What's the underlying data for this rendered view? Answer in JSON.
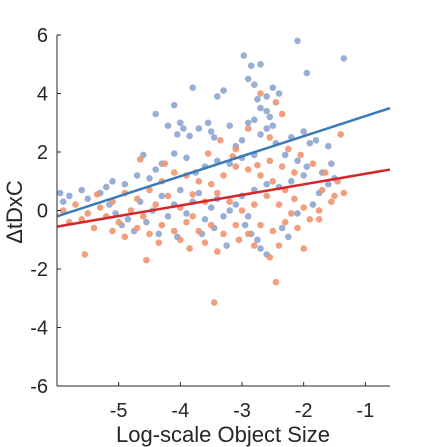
{
  "chart_data": {
    "type": "scatter",
    "title": "",
    "xlabel": "Log-scale Object Size",
    "ylabel": "ΔtDxC",
    "xlim": [
      -6.0,
      -0.6
    ],
    "ylim": [
      -6,
      6
    ],
    "xticks": [
      -5,
      -4,
      -3,
      -2,
      -1
    ],
    "xtick_labels": [
      "-5",
      "-4",
      "-3",
      "-2",
      "-1"
    ],
    "yticks": [
      -6,
      -4,
      -2,
      0,
      2,
      4,
      6
    ],
    "ytick_labels": [
      "-6",
      "-4",
      "-2",
      "0",
      "2",
      "4",
      "6"
    ],
    "grid": false,
    "legend": "none",
    "colors": {
      "blue_points": "#8ea5cf",
      "orange_points": "#f0956f",
      "blue_line": "#3a7bb8",
      "red_line": "#d62728"
    },
    "series": [
      {
        "color": "#8ea5cf",
        "points": [
          [
            -2.97,
            5.3
          ],
          [
            -2.85,
            4.95
          ],
          [
            -2.7,
            5.0
          ],
          [
            -2.1,
            5.8
          ],
          [
            -1.95,
            4.7
          ],
          [
            -1.35,
            5.2
          ],
          [
            -2.9,
            4.5
          ],
          [
            -2.8,
            4.3
          ],
          [
            -2.5,
            4.2
          ],
          [
            -2.4,
            4.0
          ],
          [
            -3.3,
            4.1
          ],
          [
            -3.4,
            3.9
          ],
          [
            -3.8,
            4.2
          ],
          [
            -2.6,
            3.9
          ],
          [
            -2.75,
            3.8
          ],
          [
            -2.7,
            3.5
          ],
          [
            -2.6,
            3.4
          ],
          [
            -2.55,
            3.2
          ],
          [
            -2.8,
            3.1
          ],
          [
            -2.9,
            3.0
          ],
          [
            -3.2,
            2.9
          ],
          [
            -3.5,
            2.7
          ],
          [
            -3.45,
            2.5
          ],
          [
            -3.7,
            2.8
          ],
          [
            -3.55,
            3.0
          ],
          [
            -4.1,
            3.6
          ],
          [
            -4.4,
            3.3
          ],
          [
            -3.95,
            2.8
          ],
          [
            -4.05,
            2.6
          ],
          [
            -4.0,
            3.0
          ],
          [
            -3.85,
            2.55
          ],
          [
            -4.2,
            2.9
          ],
          [
            -3.0,
            2.4
          ],
          [
            -3.1,
            2.2
          ],
          [
            -2.7,
            2.6
          ],
          [
            -2.6,
            2.8
          ],
          [
            -2.5,
            2.9
          ],
          [
            -2.45,
            2.3
          ],
          [
            -2.2,
            2.5
          ],
          [
            -2.0,
            2.7
          ],
          [
            -1.9,
            2.3
          ],
          [
            -1.8,
            2.4
          ],
          [
            -1.6,
            2.2
          ],
          [
            -2.8,
            1.9
          ],
          [
            -3.0,
            1.8
          ],
          [
            -3.2,
            1.6
          ],
          [
            -3.4,
            1.7
          ],
          [
            -3.6,
            1.5
          ],
          [
            -3.75,
            1.3
          ],
          [
            -3.9,
            1.8
          ],
          [
            -4.1,
            1.95
          ],
          [
            -4.3,
            1.6
          ],
          [
            -4.4,
            1.4
          ],
          [
            -4.6,
            1.9
          ],
          [
            -4.5,
            1.1
          ],
          [
            -4.7,
            1.2
          ],
          [
            -4.9,
            0.9
          ],
          [
            -5.1,
            1.0
          ],
          [
            -5.2,
            0.8
          ],
          [
            -5.3,
            0.6
          ],
          [
            -5.5,
            0.4
          ],
          [
            -5.6,
            0.7
          ],
          [
            -5.8,
            0.5
          ],
          [
            -5.9,
            0.3
          ],
          [
            -5.95,
            0.6
          ],
          [
            -2.3,
            1.9
          ],
          [
            -2.1,
            1.7
          ],
          [
            -1.95,
            1.5
          ],
          [
            -2.0,
            1.2
          ],
          [
            -2.2,
            1.0
          ],
          [
            -2.4,
            0.8
          ],
          [
            -2.6,
            0.9
          ],
          [
            -2.8,
            0.7
          ],
          [
            -3.0,
            0.5
          ],
          [
            -3.1,
            0.2
          ],
          [
            -3.2,
            0.0
          ],
          [
            -3.3,
            -0.2
          ],
          [
            -3.4,
            0.4
          ],
          [
            -3.5,
            0.1
          ],
          [
            -3.6,
            -0.3
          ],
          [
            -3.7,
            0.6
          ],
          [
            -3.8,
            0.3
          ],
          [
            -3.9,
            -0.1
          ],
          [
            -4.0,
            0.7
          ],
          [
            -4.1,
            0.2
          ],
          [
            -4.2,
            -0.2
          ],
          [
            -4.3,
            0.5
          ],
          [
            -4.45,
            0.0
          ],
          [
            -4.55,
            -0.4
          ],
          [
            -4.65,
            0.3
          ],
          [
            -4.75,
            -0.7
          ],
          [
            -4.85,
            -0.3
          ],
          [
            -4.95,
            -0.5
          ],
          [
            -5.05,
            -0.1
          ],
          [
            -5.15,
            0.2
          ],
          [
            -2.95,
            -0.5
          ],
          [
            -2.85,
            -0.8
          ],
          [
            -2.75,
            -1.0
          ],
          [
            -2.7,
            -1.3
          ],
          [
            -2.6,
            -1.5
          ],
          [
            -2.9,
            -0.2
          ],
          [
            -2.35,
            -0.6
          ],
          [
            -2.25,
            -0.9
          ],
          [
            -2.1,
            -0.1
          ],
          [
            -1.85,
            0.2
          ],
          [
            -1.75,
            0.6
          ],
          [
            -1.6,
            0.9
          ],
          [
            -1.5,
            1.1
          ],
          [
            -1.7,
            1.3
          ],
          [
            -1.55,
            1.6
          ],
          [
            -3.65,
            -0.8
          ],
          [
            -3.45,
            -0.6
          ],
          [
            -3.25,
            -1.2
          ],
          [
            -4.05,
            -0.9
          ],
          [
            -4.35,
            -0.8
          ]
        ]
      },
      {
        "color": "#f0956f",
        "points": [
          [
            -2.7,
            4.0
          ],
          [
            -2.45,
            3.7
          ],
          [
            -2.35,
            3.3
          ],
          [
            -1.4,
            2.6
          ],
          [
            -2.9,
            2.8
          ],
          [
            -2.55,
            2.5
          ],
          [
            -3.35,
            2.4
          ],
          [
            -3.1,
            2.1
          ],
          [
            -2.25,
            2.1
          ],
          [
            -2.05,
            1.9
          ],
          [
            -1.85,
            1.6
          ],
          [
            -1.65,
            1.3
          ],
          [
            -1.45,
            1.0
          ],
          [
            -1.35,
            0.6
          ],
          [
            -1.55,
            0.3
          ],
          [
            -1.75,
            0.0
          ],
          [
            -2.15,
            0.4
          ],
          [
            -2.3,
            0.7
          ],
          [
            -2.5,
            1.0
          ],
          [
            -2.7,
            1.2
          ],
          [
            -2.9,
            1.4
          ],
          [
            -3.1,
            1.5
          ],
          [
            -3.3,
            1.2
          ],
          [
            -3.5,
            0.9
          ],
          [
            -3.7,
            1.0
          ],
          [
            -3.9,
            1.2
          ],
          [
            -4.1,
            1.3
          ],
          [
            -4.3,
            1.0
          ],
          [
            -4.5,
            0.7
          ],
          [
            -4.7,
            0.4
          ],
          [
            -4.9,
            0.6
          ],
          [
            -5.1,
            0.3
          ],
          [
            -5.3,
            0.1
          ],
          [
            -5.5,
            -0.1
          ],
          [
            -5.7,
            0.2
          ],
          [
            -5.9,
            0.0
          ],
          [
            -5.8,
            -0.4
          ],
          [
            -5.6,
            -0.3
          ],
          [
            -5.4,
            -0.6
          ],
          [
            -5.2,
            -0.2
          ],
          [
            -5.0,
            -0.4
          ],
          [
            -4.8,
            0.0
          ],
          [
            -4.6,
            -0.2
          ],
          [
            -4.4,
            0.2
          ],
          [
            -4.2,
            0.5
          ],
          [
            -4.0,
            0.1
          ],
          [
            -3.8,
            -0.2
          ],
          [
            -3.6,
            0.3
          ],
          [
            -3.4,
            0.6
          ],
          [
            -3.2,
            0.3
          ],
          [
            -3.0,
            0.0
          ],
          [
            -2.8,
            0.2
          ],
          [
            -2.6,
            0.5
          ],
          [
            -2.4,
            0.2
          ],
          [
            -2.2,
            -0.1
          ],
          [
            -2.0,
            0.1
          ],
          [
            -1.9,
            -0.3
          ],
          [
            -2.1,
            -0.6
          ],
          [
            -2.3,
            -0.4
          ],
          [
            -2.5,
            -0.7
          ],
          [
            -2.7,
            -0.5
          ],
          [
            -2.9,
            -0.8
          ],
          [
            -3.1,
            -0.5
          ],
          [
            -3.3,
            -0.8
          ],
          [
            -3.5,
            -0.5
          ],
          [
            -3.7,
            -0.7
          ],
          [
            -3.9,
            -0.4
          ],
          [
            -4.1,
            -0.7
          ],
          [
            -4.3,
            -0.5
          ],
          [
            -4.5,
            -0.8
          ],
          [
            -4.7,
            -0.6
          ],
          [
            -4.9,
            -0.9
          ],
          [
            -5.1,
            -0.7
          ],
          [
            -4.35,
            -1.1
          ],
          [
            -4.0,
            -1.0
          ],
          [
            -3.85,
            -1.3
          ],
          [
            -3.6,
            -1.1
          ],
          [
            -3.4,
            -1.4
          ],
          [
            -3.05,
            -1.0
          ],
          [
            -2.8,
            -1.2
          ],
          [
            -2.55,
            -1.6
          ],
          [
            -2.4,
            -1.2
          ],
          [
            -2.0,
            -1.3
          ],
          [
            -1.75,
            -0.3
          ],
          [
            -5.55,
            -1.5
          ],
          [
            -4.55,
            -1.7
          ],
          [
            -2.45,
            -2.45
          ],
          [
            -3.45,
            -3.15
          ],
          [
            -1.5,
            0.5
          ],
          [
            -1.7,
            0.7
          ],
          [
            -2.15,
            1.3
          ],
          [
            -2.35,
            1.5
          ],
          [
            -2.55,
            1.7
          ],
          [
            -2.75,
            1.55
          ],
          [
            -3.15,
            1.85
          ],
          [
            -3.55,
            1.95
          ],
          [
            -3.8,
            0.55
          ],
          [
            -4.25,
            1.6
          ],
          [
            -4.65,
            1.75
          ],
          [
            -5.35,
            0.55
          ]
        ]
      }
    ],
    "lines": [
      {
        "color": "#3a7bb8",
        "x": [
          -6.0,
          -0.6
        ],
        "y": [
          -0.2,
          3.5
        ]
      },
      {
        "color": "#d62728",
        "x": [
          -6.0,
          -0.6
        ],
        "y": [
          -0.55,
          1.4
        ]
      }
    ]
  }
}
